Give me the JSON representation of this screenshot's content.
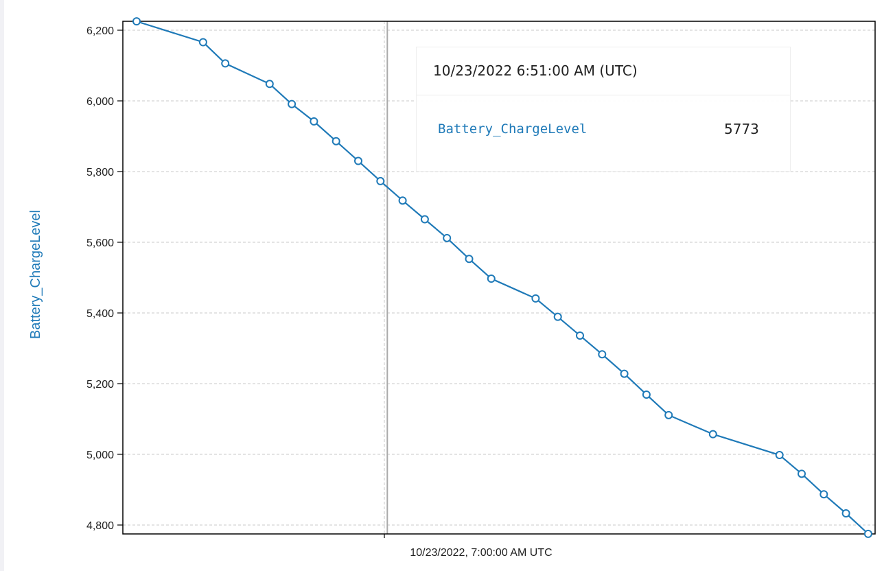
{
  "chart_data": {
    "type": "line",
    "xlabel": "",
    "ylabel": "Battery_ChargeLevel",
    "ylim": [
      4780,
      6230
    ],
    "y_ticks": [
      4800,
      5000,
      5200,
      5400,
      5600,
      5800,
      6000,
      6200
    ],
    "y_tick_labels": [
      "4,800",
      "5,000",
      "5,200",
      "5,400",
      "5,600",
      "5,800",
      "6,000",
      "6,200"
    ],
    "x_tick_label": "10/23/2022, 7:00:00 AM UTC",
    "grid": true,
    "series": [
      {
        "name": "Battery_ChargeLevel",
        "color": "#1f7ab8",
        "values": [
          6225,
          6166,
          6106,
          6048,
          5991,
          5942,
          5886,
          5830,
          5773,
          5718,
          5665,
          5612,
          5553,
          5497,
          5441,
          5389,
          5336,
          5283,
          5228,
          5169,
          5111,
          5057,
          4998,
          4945,
          4887,
          4833,
          4775
        ]
      }
    ],
    "point_positions": [
      0,
      3,
      4,
      6,
      7,
      8,
      9,
      10,
      11,
      12,
      13,
      14,
      15,
      16,
      18,
      19,
      20,
      21,
      22,
      23,
      24,
      26,
      29,
      30,
      31,
      32,
      33
    ]
  },
  "tooltip": {
    "timestamp": "10/23/2022 6:51:00 AM (UTC)",
    "series_name": "Battery_ChargeLevel",
    "value": "5773",
    "hover_index": 8
  },
  "colors": {
    "series": "#1f7ab8",
    "grid": "#c8c8c8",
    "crosshair": "#aaaaaa"
  }
}
